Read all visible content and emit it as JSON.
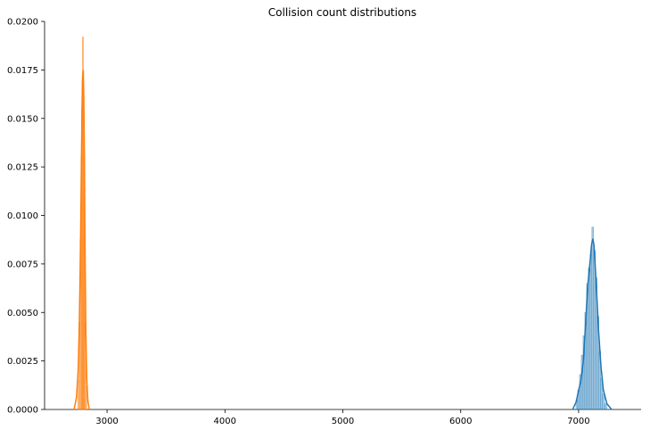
{
  "chart_data": {
    "type": "area",
    "title": "Collision count distributions",
    "xlabel": "",
    "ylabel": "",
    "xlim": [
      2470,
      7530
    ],
    "ylim": [
      0,
      0.02
    ],
    "xticks": [
      3000,
      4000,
      5000,
      6000,
      7000
    ],
    "xtick_labels": [
      "3000",
      "4000",
      "5000",
      "6000",
      "7000"
    ],
    "yticks": [
      0,
      0.0025,
      0.005,
      0.0075,
      0.01,
      0.0125,
      0.015,
      0.0175,
      0.02
    ],
    "ytick_labels": [
      "0.0000",
      "0.0025",
      "0.0050",
      "0.0075",
      "0.0100",
      "0.0125",
      "0.0150",
      "0.0175",
      "0.0200"
    ],
    "grid": false,
    "legend": "none",
    "series": [
      {
        "color": "#ff7f0e",
        "kde": {
          "x": [
            2720,
            2740,
            2755,
            2765,
            2775,
            2782,
            2788,
            2793,
            2798,
            2803,
            2808,
            2813,
            2820,
            2828,
            2838,
            2850
          ],
          "y": [
            0.0,
            0.0006,
            0.002,
            0.0045,
            0.0085,
            0.0125,
            0.0158,
            0.0172,
            0.0175,
            0.016,
            0.013,
            0.0085,
            0.004,
            0.0015,
            0.0004,
            0.0
          ]
        },
        "histogram": {
          "bin_centers": [
            2755,
            2765,
            2775,
            2781,
            2785,
            2789,
            2793,
            2797,
            2801,
            2805,
            2809,
            2815,
            2825
          ],
          "values": [
            0.0015,
            0.0045,
            0.0088,
            0.013,
            0.0155,
            0.017,
            0.0192,
            0.0192,
            0.0165,
            0.013,
            0.009,
            0.0045,
            0.0012
          ]
        }
      },
      {
        "color": "#1f77b4",
        "kde": {
          "x": [
            6950,
            6980,
            7000,
            7020,
            7040,
            7060,
            7075,
            7090,
            7100,
            7110,
            7120,
            7130,
            7140,
            7155,
            7170,
            7190,
            7210,
            7240,
            7280
          ],
          "y": [
            0.0,
            0.0004,
            0.001,
            0.0015,
            0.0025,
            0.0045,
            0.0062,
            0.0072,
            0.0078,
            0.0085,
            0.0088,
            0.0085,
            0.0075,
            0.0058,
            0.004,
            0.0022,
            0.001,
            0.0003,
            0.0
          ]
        },
        "histogram": {
          "bin_centers": [
            6985,
            7000,
            7015,
            7030,
            7045,
            7060,
            7075,
            7090,
            7105,
            7120,
            7135,
            7150,
            7165,
            7180,
            7195,
            7210,
            7230
          ],
          "values": [
            0.0005,
            0.001,
            0.0018,
            0.0028,
            0.0038,
            0.005,
            0.0065,
            0.0073,
            0.008,
            0.0094,
            0.0082,
            0.0068,
            0.0048,
            0.003,
            0.0016,
            0.0008,
            0.0003
          ]
        }
      }
    ]
  }
}
